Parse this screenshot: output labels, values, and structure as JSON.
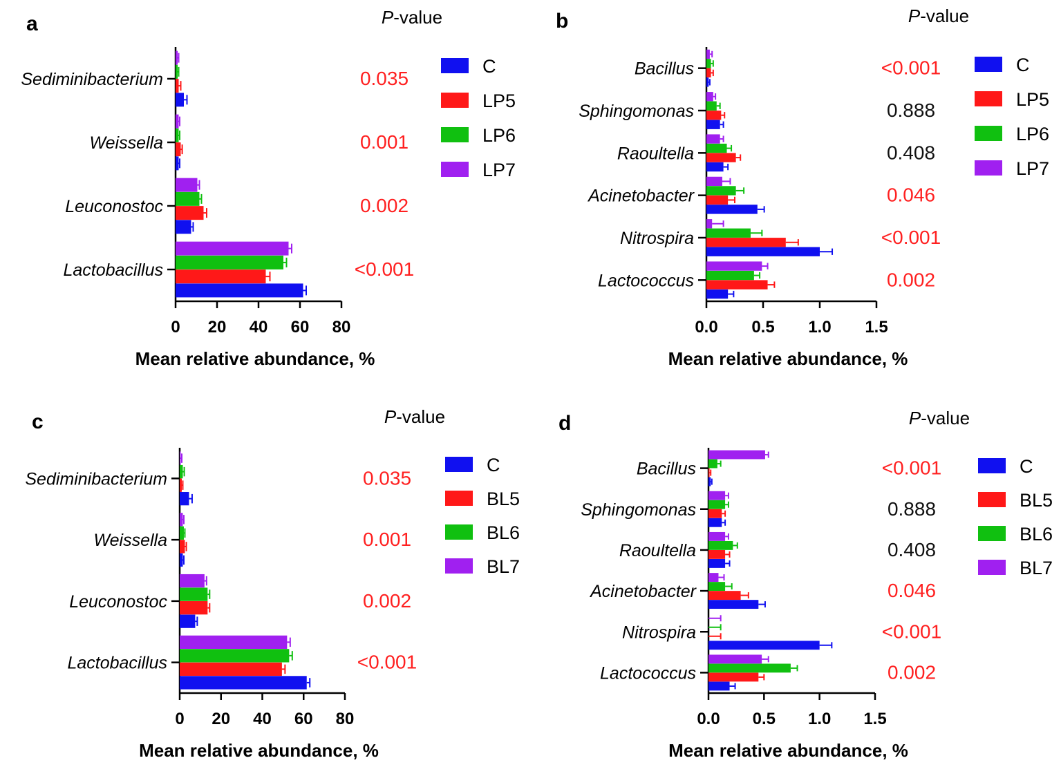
{
  "colors": {
    "C": "#1010f0",
    "LP5": "#ff1818",
    "LP6": "#10c010",
    "LP7": "#a020f0",
    "BL5": "#ff1818",
    "BL6": "#10c010",
    "BL7": "#a020f0",
    "sig": "#ff2020",
    "nonsig": "#111111"
  },
  "pvalue_header": {
    "italic": "P",
    "rest": "-value"
  },
  "chart_data": [
    {
      "panel": "a",
      "type": "bar",
      "orientation": "horizontal",
      "xlabel": "Mean relative abundance, %",
      "xlim": [
        0,
        80
      ],
      "xticks": [
        "0",
        "20",
        "40",
        "60",
        "80"
      ],
      "categories": [
        "Sediminibacterium",
        "Weissella",
        "Leuconostoc",
        "Lactobacillus"
      ],
      "series": [
        {
          "name": "LP7",
          "values": [
            1.0,
            1.5,
            10.5,
            54.5
          ],
          "errors": [
            0.5,
            0.5,
            1.0,
            1.5
          ]
        },
        {
          "name": "LP6",
          "values": [
            1.0,
            1.5,
            11.5,
            52.0
          ],
          "errors": [
            0.5,
            0.5,
            1.0,
            1.5
          ]
        },
        {
          "name": "LP5",
          "values": [
            1.5,
            2.5,
            13.5,
            43.5
          ],
          "errors": [
            1.0,
            0.7,
            1.5,
            2.0
          ]
        },
        {
          "name": "C",
          "values": [
            4.0,
            1.5,
            7.5,
            61.5
          ],
          "errors": [
            1.5,
            0.5,
            1.0,
            1.5
          ]
        }
      ],
      "pvalues": [
        "0.035",
        "0.001",
        "0.002",
        "<0.001"
      ],
      "pvalue_significant": [
        true,
        true,
        true,
        true
      ],
      "legend": [
        "C",
        "LP5",
        "LP6",
        "LP7"
      ]
    },
    {
      "panel": "b",
      "type": "bar",
      "orientation": "horizontal",
      "xlabel": "Mean relative abundance, %",
      "xlim": [
        0,
        1.5
      ],
      "xticks": [
        "0.0",
        "0.5",
        "1.0",
        "1.5"
      ],
      "categories": [
        "Bacillus",
        "Sphingomonas",
        "Raoultella",
        "Acinetobacter",
        "Nitrospira",
        "Lactococcus"
      ],
      "series": [
        {
          "name": "LP7",
          "values": [
            0.03,
            0.06,
            0.12,
            0.14,
            0.05,
            0.49
          ],
          "errors": [
            0.02,
            0.02,
            0.03,
            0.07,
            0.1,
            0.05
          ]
        },
        {
          "name": "LP6",
          "values": [
            0.04,
            0.09,
            0.18,
            0.26,
            0.39,
            0.42
          ],
          "errors": [
            0.02,
            0.03,
            0.04,
            0.07,
            0.1,
            0.05
          ]
        },
        {
          "name": "LP5",
          "values": [
            0.04,
            0.13,
            0.26,
            0.19,
            0.7,
            0.54
          ],
          "errors": [
            0.02,
            0.03,
            0.04,
            0.06,
            0.11,
            0.06
          ]
        },
        {
          "name": "C",
          "values": [
            0.02,
            0.12,
            0.15,
            0.45,
            1.0,
            0.19
          ],
          "errors": [
            0.01,
            0.03,
            0.04,
            0.06,
            0.11,
            0.05
          ]
        }
      ],
      "pvalues": [
        "<0.001",
        "0.888",
        "0.408",
        "0.046",
        "<0.001",
        "0.002"
      ],
      "pvalue_significant": [
        true,
        false,
        false,
        true,
        true,
        true
      ],
      "legend": [
        "C",
        "LP5",
        "LP6",
        "LP7"
      ]
    },
    {
      "panel": "c",
      "type": "bar",
      "orientation": "horizontal",
      "xlabel": "Mean relative abundance, %",
      "xlim": [
        0,
        80
      ],
      "xticks": [
        "0",
        "20",
        "40",
        "60",
        "80"
      ],
      "categories": [
        "Sediminibacterium",
        "Weissella",
        "Leuconostoc",
        "Lactobacillus"
      ],
      "series": [
        {
          "name": "BL7",
          "values": [
            0.5,
            1.5,
            12.0,
            52.0
          ],
          "errors": [
            0.5,
            0.5,
            1.0,
            1.5
          ]
        },
        {
          "name": "BL6",
          "values": [
            1.5,
            2.0,
            13.5,
            53.0
          ],
          "errors": [
            0.7,
            0.5,
            1.0,
            1.5
          ]
        },
        {
          "name": "BL5",
          "values": [
            1.0,
            2.5,
            13.5,
            49.5
          ],
          "errors": [
            0.5,
            0.7,
            1.0,
            1.5
          ]
        },
        {
          "name": "C",
          "values": [
            4.5,
            1.5,
            7.5,
            61.5
          ],
          "errors": [
            1.5,
            0.5,
            1.0,
            1.5
          ]
        }
      ],
      "pvalues": [
        "0.035",
        "0.001",
        "0.002",
        "<0.001"
      ],
      "pvalue_significant": [
        true,
        true,
        true,
        true
      ],
      "legend": [
        "C",
        "BL5",
        "BL6",
        "BL7"
      ]
    },
    {
      "panel": "d",
      "type": "bar",
      "orientation": "horizontal",
      "xlabel": "Mean relative abundance, %",
      "xlim": [
        0,
        1.5
      ],
      "xticks": [
        "0.0",
        "0.5",
        "1.0",
        "1.5"
      ],
      "categories": [
        "Bacillus",
        "Sphingomonas",
        "Raoultella",
        "Acinetobacter",
        "Nitrospira",
        "Lactococcus"
      ],
      "series": [
        {
          "name": "BL7",
          "values": [
            0.51,
            0.15,
            0.15,
            0.09,
            0.0,
            0.48
          ],
          "errors": [
            0.03,
            0.03,
            0.03,
            0.05,
            0.11,
            0.06
          ]
        },
        {
          "name": "BL6",
          "values": [
            0.08,
            0.15,
            0.22,
            0.15,
            0.0,
            0.74
          ],
          "errors": [
            0.03,
            0.03,
            0.04,
            0.06,
            0.11,
            0.06
          ]
        },
        {
          "name": "BL5",
          "values": [
            0.01,
            0.12,
            0.15,
            0.29,
            0.0,
            0.45
          ],
          "errors": [
            0.01,
            0.03,
            0.04,
            0.07,
            0.11,
            0.05
          ]
        },
        {
          "name": "C",
          "values": [
            0.02,
            0.12,
            0.15,
            0.45,
            1.0,
            0.19
          ],
          "errors": [
            0.01,
            0.03,
            0.04,
            0.06,
            0.11,
            0.05
          ]
        }
      ],
      "pvalues": [
        "<0.001",
        "0.888",
        "0.408",
        "0.046",
        "<0.001",
        "0.002"
      ],
      "pvalue_significant": [
        true,
        false,
        false,
        true,
        true,
        true
      ],
      "legend": [
        "C",
        "BL5",
        "BL6",
        "BL7"
      ]
    }
  ]
}
